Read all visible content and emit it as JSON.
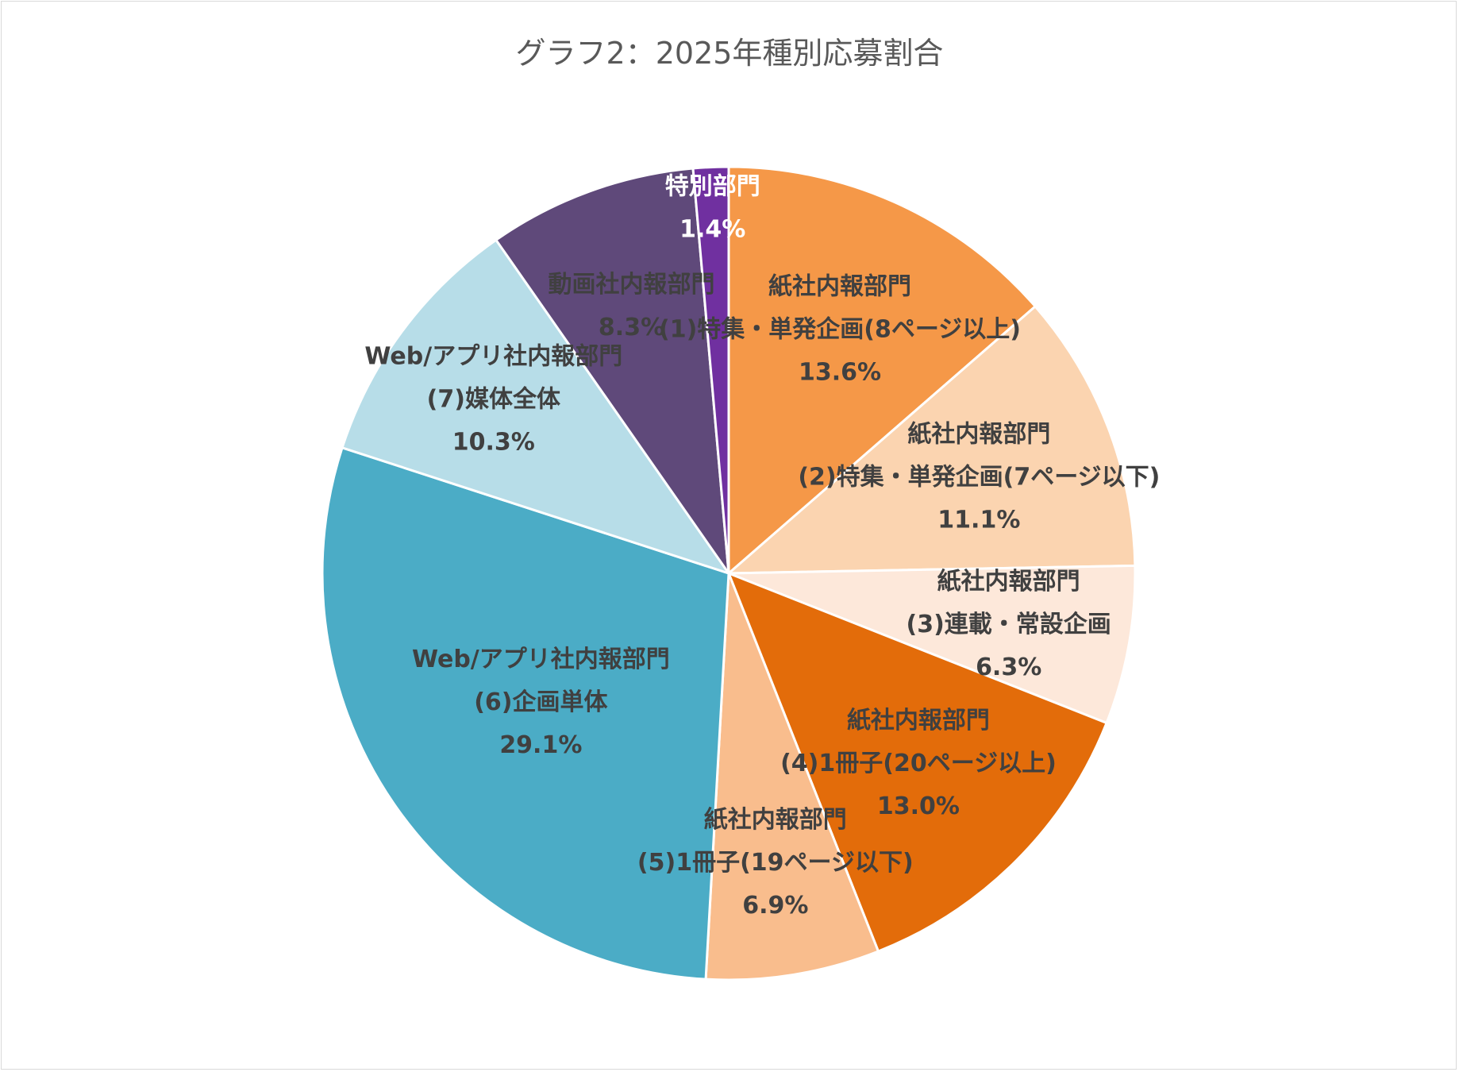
{
  "chart_data": {
    "type": "pie",
    "title": "グラフ2：2025年種別応募割合",
    "series": [
      {
        "name": "紙社内報部門 (1)特集・単発企画(8ページ以上)",
        "label_lines": [
          "紙社内報部門",
          "(1)特集・単発企画(8ページ以上)"
        ],
        "percent_label": "13.6%",
        "value": 13.6,
        "color": "#f59848"
      },
      {
        "name": "紙社内報部門 (2)特集・単発企画(7ページ以下)",
        "label_lines": [
          "紙社内報部門",
          "(2)特集・単発企画(7ページ以下)"
        ],
        "percent_label": "11.1%",
        "value": 11.1,
        "color": "#fbd4b0"
      },
      {
        "name": "紙社内報部門 (3)連載・常設企画",
        "label_lines": [
          "紙社内報部門",
          "(3)連載・常設企画"
        ],
        "percent_label": "6.3%",
        "value": 6.3,
        "color": "#fde8da"
      },
      {
        "name": "紙社内報部門 (4)1冊子(20ページ以上)",
        "label_lines": [
          "紙社内報部門",
          "(4)1冊子(20ページ以上)"
        ],
        "percent_label": "13.0%",
        "value": 13.0,
        "color": "#e36c0a"
      },
      {
        "name": "紙社内報部門 (5)1冊子(19ページ以下)",
        "label_lines": [
          "紙社内報部門",
          "(5)1冊子(19ページ以下)"
        ],
        "percent_label": "6.9%",
        "value": 6.9,
        "color": "#f9bd8d"
      },
      {
        "name": "Web/アプリ社内報部門 (6)企画単体",
        "label_lines": [
          "Web/アプリ社内報部門",
          "(6)企画単体"
        ],
        "percent_label": "29.1%",
        "value": 29.1,
        "color": "#4bacc6"
      },
      {
        "name": "Web/アプリ社内報部門 (7)媒体全体",
        "label_lines": [
          "Web/アプリ社内報部門",
          "(7)媒体全体"
        ],
        "percent_label": "10.3%",
        "value": 10.3,
        "color": "#b7dde8"
      },
      {
        "name": "動画社内報部門",
        "label_lines": [
          "動画社内報部門"
        ],
        "percent_label": "8.3%",
        "value": 8.3,
        "color": "#5f497a"
      },
      {
        "name": "特別部門",
        "label_lines": [
          "特別部門"
        ],
        "percent_label": "1.4%",
        "value": 1.4,
        "color": "#7030a0"
      }
    ],
    "start": "12 o'clock",
    "direction": "clockwise",
    "legend": "none",
    "data_labels": "category name and percentage on slices"
  }
}
